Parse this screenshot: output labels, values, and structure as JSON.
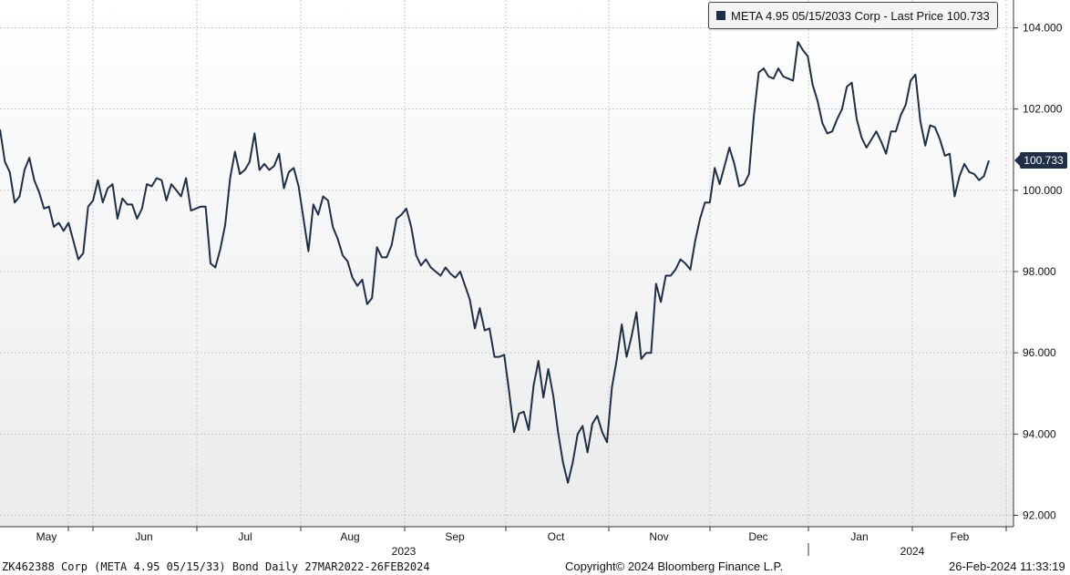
{
  "legend": {
    "text": "META 4.95 05/15/2033 Corp - Last Price 100.733",
    "color": "#1f2f45"
  },
  "last_price_badge": "100.733",
  "footer": {
    "left": "ZK462388 Corp (META 4.95 05/15/33) Bond  Daily 27MAR2022-26FEB2024",
    "center": "Copyright© 2024 Bloomberg Finance L.P.",
    "right": "26-Feb-2024 11:33:19"
  },
  "colors": {
    "line": "#1f2f45",
    "grid": "#c8c8c8",
    "bg_top": "#ffffff",
    "bg_bottom": "#ececec"
  },
  "chart_data": {
    "type": "line",
    "title": "",
    "xlabel": "",
    "ylabel": "",
    "ylim": [
      92,
      104
    ],
    "yticks": [
      "92.000",
      "94.000",
      "96.000",
      "98.000",
      "100.000",
      "102.000",
      "104.000"
    ],
    "ytick_values": [
      92,
      94,
      96,
      98,
      100,
      102,
      104
    ],
    "month_labels": [
      "May",
      "Jun",
      "Jul",
      "Aug",
      "Sep",
      "Oct",
      "Nov",
      "Dec",
      "Jan",
      "Feb"
    ],
    "year_labels": [
      "2023",
      "2024"
    ],
    "grid": true,
    "legend_position": "top-right",
    "series": [
      {
        "name": "META 4.95 05/15/2033 Corp - Last Price",
        "last_value": 100.733,
        "values": [
          101.5,
          100.7,
          100.45,
          99.7,
          99.85,
          100.5,
          100.8,
          100.25,
          99.95,
          99.55,
          99.6,
          99.1,
          99.2,
          99.0,
          99.2,
          98.75,
          98.3,
          98.45,
          99.6,
          99.75,
          100.25,
          99.7,
          100.05,
          100.15,
          99.3,
          99.8,
          99.65,
          99.65,
          99.3,
          99.55,
          100.15,
          100.1,
          100.3,
          100.25,
          99.75,
          100.15,
          100.0,
          99.85,
          100.3,
          99.5,
          99.55,
          99.6,
          99.6,
          98.2,
          98.1,
          98.55,
          99.15,
          100.3,
          100.95,
          100.4,
          100.5,
          100.7,
          101.4,
          100.5,
          100.65,
          100.5,
          100.6,
          100.9,
          100.05,
          100.45,
          100.55,
          100.1,
          99.3,
          98.5,
          99.65,
          99.4,
          99.85,
          99.75,
          99.1,
          98.8,
          98.4,
          98.25,
          97.85,
          97.65,
          97.8,
          97.2,
          97.35,
          98.6,
          98.35,
          98.35,
          98.65,
          99.3,
          99.4,
          99.55,
          99.1,
          98.4,
          98.15,
          98.3,
          98.1,
          98.0,
          97.9,
          98.1,
          97.95,
          97.85,
          98.0,
          97.65,
          97.3,
          96.6,
          97.1,
          96.55,
          96.6,
          95.9,
          95.9,
          95.95,
          95.05,
          94.05,
          94.5,
          94.55,
          94.1,
          95.2,
          95.8,
          94.9,
          95.6,
          94.95,
          94.05,
          93.3,
          92.8,
          93.3,
          94.0,
          94.2,
          93.55,
          94.25,
          94.45,
          94.05,
          93.8,
          95.15,
          95.85,
          96.7,
          95.9,
          96.4,
          97.0,
          95.85,
          96.0,
          96.0,
          97.7,
          97.25,
          97.9,
          97.9,
          98.05,
          98.3,
          98.2,
          98.05,
          98.75,
          99.3,
          99.7,
          99.7,
          100.55,
          100.15,
          100.6,
          101.05,
          100.65,
          100.1,
          100.15,
          100.4,
          101.85,
          102.9,
          103.0,
          102.8,
          102.75,
          103.0,
          102.8,
          102.75,
          102.7,
          103.65,
          103.45,
          103.3,
          102.6,
          102.2,
          101.65,
          101.4,
          101.45,
          101.75,
          102.0,
          102.55,
          102.65,
          101.75,
          101.3,
          101.05,
          101.25,
          101.45,
          101.2,
          100.9,
          101.45,
          101.45,
          101.85,
          102.1,
          102.7,
          102.85,
          101.7,
          101.1,
          101.6,
          101.55,
          101.25,
          100.85,
          100.9,
          99.85,
          100.35,
          100.65,
          100.45,
          100.4,
          100.25,
          100.35,
          100.733
        ]
      }
    ]
  }
}
